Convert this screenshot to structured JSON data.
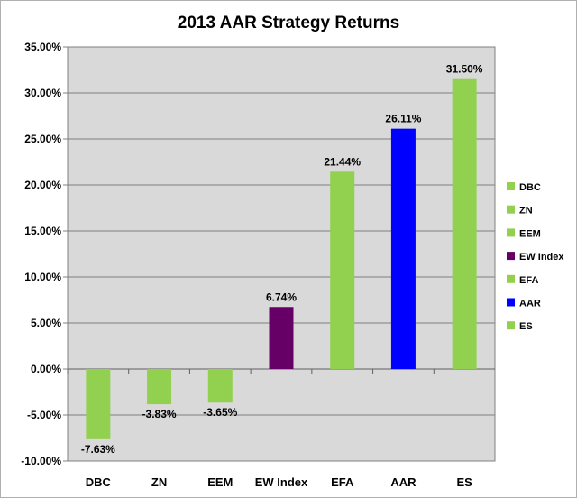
{
  "chart_data": {
    "type": "bar",
    "title": "2013 AAR Strategy Returns",
    "xlabel": "",
    "ylabel": "",
    "categories": [
      "DBC",
      "ZN",
      "EEM",
      "EW Index",
      "EFA",
      "AAR",
      "ES"
    ],
    "values": [
      -7.63,
      -3.83,
      -3.65,
      6.74,
      21.44,
      26.11,
      31.5
    ],
    "value_labels": [
      "-7.63%",
      "-3.83%",
      "-3.65%",
      "6.74%",
      "21.44%",
      "26.11%",
      "31.50%"
    ],
    "ylim": [
      -10,
      35
    ],
    "yticks": [
      -10,
      -5,
      0,
      5,
      10,
      15,
      20,
      25,
      30,
      35
    ],
    "ytick_labels": [
      "-10.00%",
      "-5.00%",
      "0.00%",
      "5.00%",
      "10.00%",
      "15.00%",
      "20.00%",
      "25.00%",
      "30.00%",
      "35.00%"
    ],
    "grid": true,
    "legend_position": "right",
    "legend": [
      "DBC",
      "ZN",
      "EEM",
      "EW Index",
      "EFA",
      "AAR",
      "ES"
    ],
    "colors": [
      "#92d050",
      "#92d050",
      "#92d050",
      "#660066",
      "#92d050",
      "#0000ff",
      "#92d050"
    ],
    "plot_background": "#d9d9d9",
    "gridline_color": "#7f7f7f"
  }
}
